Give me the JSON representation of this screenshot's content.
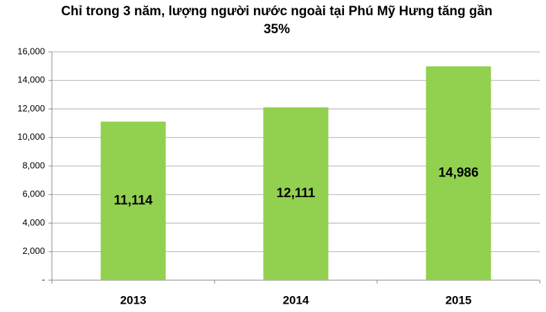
{
  "chart_data": {
    "type": "bar",
    "title": "Chỉ trong 3 năm, lượng người nước ngoài tại Phú Mỹ Hưng tăng gần 35%",
    "categories": [
      "2013",
      "2014",
      "2015"
    ],
    "values": [
      11114,
      12111,
      14986
    ],
    "value_labels": [
      "11,114",
      "12,111",
      "14,986"
    ],
    "color": "#92d050",
    "ylim": [
      0,
      16000
    ],
    "yticks": [
      {
        "value": 0,
        "label": "-"
      },
      {
        "value": 2000,
        "label": "2,000"
      },
      {
        "value": 4000,
        "label": "4,000"
      },
      {
        "value": 6000,
        "label": "6,000"
      },
      {
        "value": 8000,
        "label": "8,000"
      },
      {
        "value": 10000,
        "label": "10,000"
      },
      {
        "value": 12000,
        "label": "12,000"
      },
      {
        "value": 14000,
        "label": "14,000"
      },
      {
        "value": 16000,
        "label": "16,000"
      }
    ],
    "grid": true
  }
}
